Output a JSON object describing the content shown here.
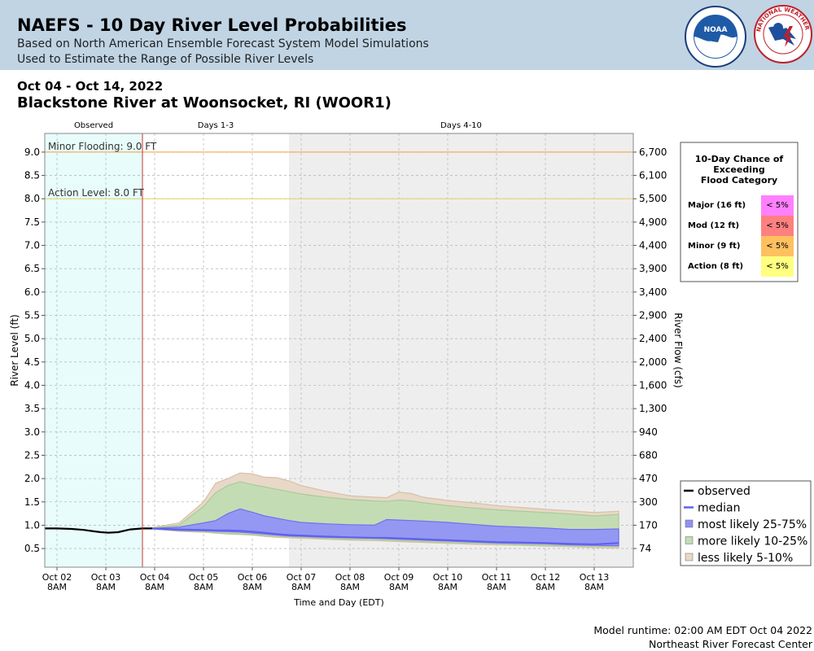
{
  "header": {
    "title": "NAEFS - 10 Day River Level Probabilities",
    "subtitle1": "Based on North American Ensemble Forecast System Model Simulations",
    "subtitle2": "Used to Estimate the Range of Possible River Levels",
    "noaa_logo_text": "NOAA",
    "noaa_ring_text": "NATIONAL OCEANIC AND ATMOSPHERIC ADMINISTRATION · U.S. DEPARTMENT OF COMMERCE",
    "nws_ring_text": "NATIONAL WEATHER SERVICE"
  },
  "date_range": "Oct 04 - Oct 14, 2022",
  "station": "Blackstone River at Woonsocket, RI (WOOR1)",
  "footer": {
    "runtime": "Model runtime: 02:00 AM EDT Oct 04 2022",
    "center": "Northeast River Forecast Center"
  },
  "colors": {
    "observed_bg": "#e8fcfc",
    "days4_10_bg": "#eeeeee",
    "minor_line": "#f0a040",
    "action_line": "#ead060",
    "now_line": "#cc3333",
    "band_5_10": "#e8d8c8",
    "band_10_25": "#c4dcb4",
    "band_25_75": "#9090f8",
    "median": "#6060f0",
    "observed": "#000000",
    "cat_major": "#ff80ff",
    "cat_mod": "#ff8080",
    "cat_minor": "#ffc060",
    "cat_action": "#ffff80"
  },
  "chart_data": {
    "type": "area",
    "xlabel": "Time and Day (EDT)",
    "ylabel": "River Level (ft)",
    "y2label": "River Flow (cfs)",
    "x_unit": "days since Oct 02 8AM",
    "xlim": [
      -0.25,
      11.8
    ],
    "ylim": [
      0.1,
      9.4
    ],
    "yticks": [
      0.5,
      1.0,
      1.5,
      2.0,
      2.5,
      3.0,
      3.5,
      4.0,
      4.5,
      5.0,
      5.5,
      6.0,
      6.5,
      7.0,
      7.5,
      8.0,
      8.5,
      9.0
    ],
    "y2ticks": [
      {
        "level": 0.5,
        "label": "74"
      },
      {
        "level": 1.0,
        "label": "170"
      },
      {
        "level": 1.5,
        "label": "300"
      },
      {
        "level": 2.0,
        "label": "470"
      },
      {
        "level": 2.5,
        "label": "680"
      },
      {
        "level": 3.0,
        "label": "940"
      },
      {
        "level": 3.5,
        "label": "1,300"
      },
      {
        "level": 4.0,
        "label": "1,600"
      },
      {
        "level": 4.5,
        "label": "2,000"
      },
      {
        "level": 5.0,
        "label": "2,400"
      },
      {
        "level": 5.5,
        "label": "2,900"
      },
      {
        "level": 6.0,
        "label": "3,400"
      },
      {
        "level": 6.5,
        "label": "3,900"
      },
      {
        "level": 7.0,
        "label": "4,400"
      },
      {
        "level": 7.5,
        "label": "4,900"
      },
      {
        "level": 8.0,
        "label": "5,500"
      },
      {
        "level": 8.5,
        "label": "6,100"
      },
      {
        "level": 9.0,
        "label": "6,700"
      }
    ],
    "xticks": [
      {
        "x": 0,
        "label1": "Oct 02",
        "label2": "8AM"
      },
      {
        "x": 1,
        "label1": "Oct 03",
        "label2": "8AM"
      },
      {
        "x": 2,
        "label1": "Oct 04",
        "label2": "8AM"
      },
      {
        "x": 3,
        "label1": "Oct 05",
        "label2": "8AM"
      },
      {
        "x": 4,
        "label1": "Oct 06",
        "label2": "8AM"
      },
      {
        "x": 5,
        "label1": "Oct 07",
        "label2": "8AM"
      },
      {
        "x": 6,
        "label1": "Oct 08",
        "label2": "8AM"
      },
      {
        "x": 7,
        "label1": "Oct 09",
        "label2": "8AM"
      },
      {
        "x": 8,
        "label1": "Oct 10",
        "label2": "8AM"
      },
      {
        "x": 9,
        "label1": "Oct 11",
        "label2": "8AM"
      },
      {
        "x": 10,
        "label1": "Oct 12",
        "label2": "8AM"
      },
      {
        "x": 11,
        "label1": "Oct 13",
        "label2": "8AM"
      }
    ],
    "periods": [
      {
        "label": "Observed",
        "x0": -0.25,
        "x1": 1.75
      },
      {
        "label": "Days 1-3",
        "x0": 1.75,
        "x1": 4.75
      },
      {
        "label": "Days 4-10",
        "x0": 4.75,
        "x1": 11.8
      }
    ],
    "now_x": 1.75,
    "thresholds": [
      {
        "name": "Minor Flooding",
        "label": "Minor Flooding: 9.0 FT",
        "level": 9.0
      },
      {
        "name": "Action Level",
        "label": "Action Level: 8.0 FT",
        "level": 8.0
      }
    ],
    "observed": {
      "x": [
        -0.25,
        0.0,
        0.3,
        0.55,
        0.75,
        0.9,
        1.05,
        1.25,
        1.5,
        1.75,
        1.95
      ],
      "y": [
        0.93,
        0.93,
        0.92,
        0.9,
        0.87,
        0.85,
        0.84,
        0.85,
        0.91,
        0.93,
        0.93
      ]
    },
    "forecast_x": [
      1.95,
      2.5,
      3.0,
      3.25,
      3.5,
      3.75,
      4.0,
      4.25,
      4.5,
      4.75,
      5.0,
      5.5,
      6.0,
      6.5,
      6.75,
      7.0,
      7.25,
      7.5,
      8.0,
      8.5,
      9.0,
      9.5,
      10.0,
      10.5,
      11.0,
      11.5
    ],
    "bands": [
      {
        "name": "less likely 5-10%",
        "upper": [
          0.95,
          1.05,
          1.5,
          1.9,
          2.0,
          2.12,
          2.1,
          2.03,
          2.02,
          1.95,
          1.85,
          1.73,
          1.63,
          1.6,
          1.59,
          1.71,
          1.68,
          1.6,
          1.53,
          1.48,
          1.42,
          1.38,
          1.34,
          1.31,
          1.27,
          1.3
        ],
        "lower": [
          0.92,
          0.87,
          0.85,
          0.83,
          0.81,
          0.8,
          0.79,
          0.76,
          0.74,
          0.73,
          0.72,
          0.7,
          0.68,
          0.67,
          0.66,
          0.65,
          0.64,
          0.63,
          0.61,
          0.59,
          0.58,
          0.57,
          0.55,
          0.54,
          0.52,
          0.51
        ]
      },
      {
        "name": "more likely 10-25%",
        "upper": [
          0.94,
          1.0,
          1.4,
          1.7,
          1.85,
          1.93,
          1.87,
          1.82,
          1.77,
          1.72,
          1.67,
          1.6,
          1.55,
          1.52,
          1.51,
          1.54,
          1.52,
          1.48,
          1.42,
          1.37,
          1.33,
          1.3,
          1.27,
          1.24,
          1.2,
          1.23
        ],
        "lower": [
          0.92,
          0.88,
          0.86,
          0.84,
          0.82,
          0.81,
          0.8,
          0.78,
          0.76,
          0.75,
          0.74,
          0.72,
          0.7,
          0.69,
          0.68,
          0.67,
          0.66,
          0.65,
          0.63,
          0.61,
          0.6,
          0.58,
          0.57,
          0.56,
          0.55,
          0.54
        ]
      },
      {
        "name": "most likely 25-75%",
        "upper": [
          0.93,
          0.96,
          1.05,
          1.1,
          1.25,
          1.35,
          1.28,
          1.2,
          1.15,
          1.1,
          1.06,
          1.03,
          1.01,
          1.0,
          1.12,
          1.11,
          1.1,
          1.09,
          1.06,
          1.02,
          0.98,
          0.96,
          0.94,
          0.91,
          0.91,
          0.92
        ],
        "lower": [
          0.92,
          0.89,
          0.88,
          0.87,
          0.86,
          0.85,
          0.83,
          0.81,
          0.79,
          0.77,
          0.76,
          0.74,
          0.73,
          0.72,
          0.71,
          0.7,
          0.69,
          0.68,
          0.66,
          0.64,
          0.62,
          0.61,
          0.6,
          0.58,
          0.57,
          0.56
        ]
      }
    ],
    "median": {
      "name": "median",
      "y": [
        0.93,
        0.91,
        0.9,
        0.89,
        0.89,
        0.88,
        0.86,
        0.84,
        0.81,
        0.79,
        0.78,
        0.76,
        0.74,
        0.73,
        0.73,
        0.72,
        0.71,
        0.7,
        0.68,
        0.66,
        0.64,
        0.63,
        0.62,
        0.6,
        0.59,
        0.62
      ]
    },
    "legend": {
      "position": "bottom-right",
      "entries": [
        {
          "label": "observed",
          "kind": "line",
          "color": "#000000"
        },
        {
          "label": "median",
          "kind": "line",
          "color": "#6060f0"
        },
        {
          "label": "most likely 25-75%",
          "kind": "box",
          "color": "#9090f8"
        },
        {
          "label": "more likely 10-25%",
          "kind": "box",
          "color": "#c4dcb4"
        },
        {
          "label": "less likely 5-10%",
          "kind": "box",
          "color": "#e8d8c8"
        }
      ]
    },
    "flood_table": {
      "title": [
        "10-Day Chance of",
        "Exceeding",
        "Flood Category"
      ],
      "position": "top-right",
      "rows": [
        {
          "category": "Major (16 ft)",
          "value": "< 5%",
          "color": "#ff80ff"
        },
        {
          "category": "Mod (12 ft)",
          "value": "< 5%",
          "color": "#ff8080"
        },
        {
          "category": "Minor (9 ft)",
          "value": "< 5%",
          "color": "#ffc060"
        },
        {
          "category": "Action (8 ft)",
          "value": "< 5%",
          "color": "#ffff80"
        }
      ]
    }
  }
}
